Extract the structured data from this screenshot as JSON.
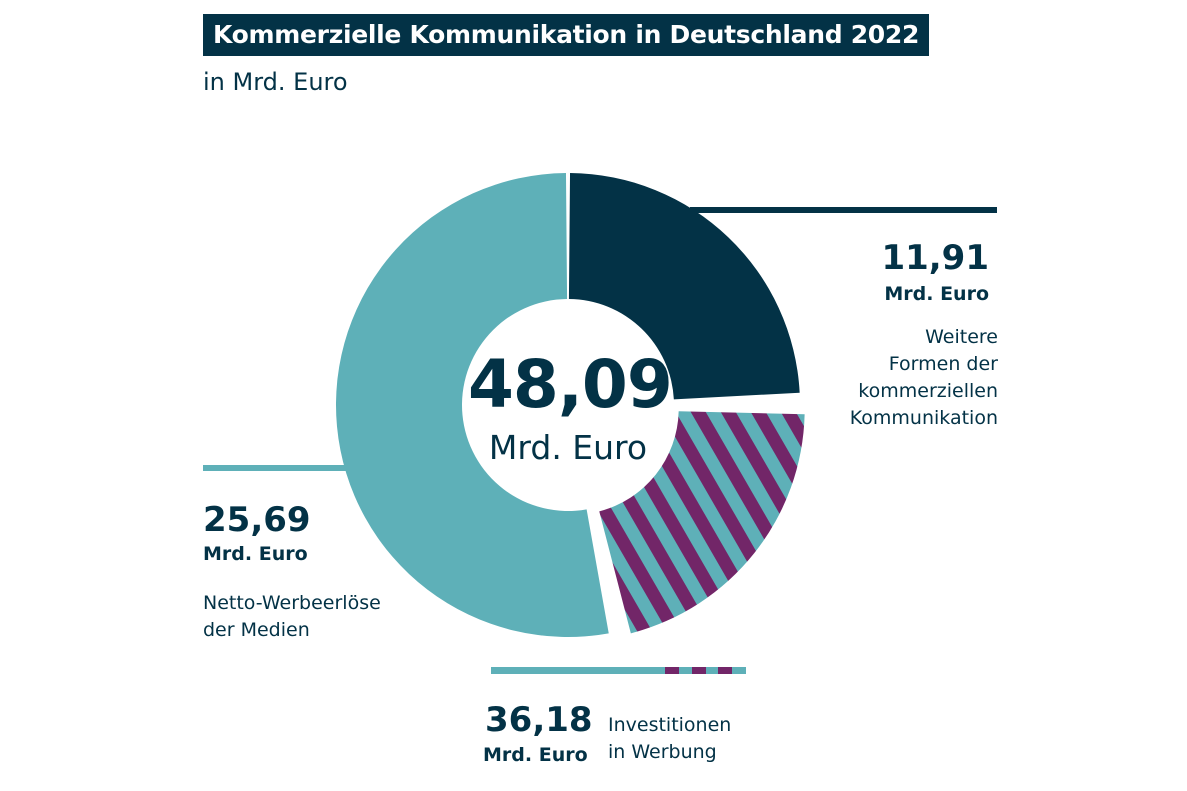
{
  "chart_data": {
    "type": "pie",
    "variant": "donut",
    "title": "Kommerzielle Kommunikation in Deutschland 2022",
    "subtitle": "in Mrd. Euro",
    "total": {
      "value": 48.09,
      "label": "48,09",
      "unit": "Mrd. Euro"
    },
    "slices": [
      {
        "name": "Weitere Formen der kommerziellen Kommunikation",
        "value": 11.91,
        "label": "11,91",
        "unit": "Mrd. Euro",
        "desc_lines": [
          "Weitere",
          "Formen der",
          "kommerziellen",
          "Kommunikation"
        ],
        "color": "#033246",
        "pattern": "solid"
      },
      {
        "name": "Investitionen in Werbung (Differenz)",
        "value": 10.49,
        "color": "#5eb0b8",
        "stripe_color": "#722668",
        "pattern": "stripes"
      },
      {
        "name": "Netto-Werbeerlöse der Medien",
        "value": 25.69,
        "label": "25,69",
        "unit": "Mrd. Euro",
        "desc_lines": [
          "Netto-Werbeerlöse",
          "der Medien"
        ],
        "color": "#5eb0b8",
        "pattern": "solid"
      }
    ],
    "group_label": {
      "value": 36.18,
      "label": "36,18",
      "unit": "Mrd. Euro",
      "desc_lines": [
        "Investitionen",
        "in Werbung"
      ]
    }
  }
}
